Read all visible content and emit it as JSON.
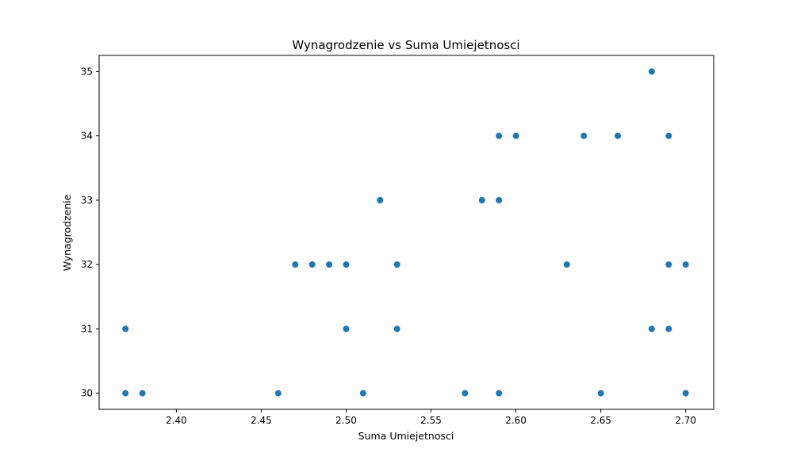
{
  "chart_data": {
    "type": "scatter",
    "title": "Wynagrodzenie vs Suma Umiejetnosci",
    "xlabel": "Suma Umiejetnosci",
    "ylabel": "Wynagrodzenie",
    "xlim": [
      2.3545,
      2.7165
    ],
    "ylim": [
      29.75,
      35.25
    ],
    "xticks": [
      2.4,
      2.45,
      2.5,
      2.55,
      2.6,
      2.65,
      2.7
    ],
    "xtick_labels": [
      "2.40",
      "2.45",
      "2.50",
      "2.55",
      "2.60",
      "2.65",
      "2.70"
    ],
    "yticks": [
      30,
      31,
      32,
      33,
      34,
      35
    ],
    "ytick_labels": [
      "30",
      "31",
      "32",
      "33",
      "34",
      "35"
    ],
    "grid": false,
    "color": "#1f77b4",
    "points": [
      {
        "x": 2.37,
        "y": 31
      },
      {
        "x": 2.37,
        "y": 30
      },
      {
        "x": 2.38,
        "y": 30
      },
      {
        "x": 2.46,
        "y": 30
      },
      {
        "x": 2.47,
        "y": 32
      },
      {
        "x": 2.48,
        "y": 32
      },
      {
        "x": 2.49,
        "y": 32
      },
      {
        "x": 2.5,
        "y": 32
      },
      {
        "x": 2.5,
        "y": 31
      },
      {
        "x": 2.51,
        "y": 30
      },
      {
        "x": 2.52,
        "y": 33
      },
      {
        "x": 2.53,
        "y": 32
      },
      {
        "x": 2.53,
        "y": 31
      },
      {
        "x": 2.57,
        "y": 30
      },
      {
        "x": 2.58,
        "y": 33
      },
      {
        "x": 2.59,
        "y": 34
      },
      {
        "x": 2.59,
        "y": 33
      },
      {
        "x": 2.59,
        "y": 30
      },
      {
        "x": 2.6,
        "y": 34
      },
      {
        "x": 2.63,
        "y": 32
      },
      {
        "x": 2.64,
        "y": 34
      },
      {
        "x": 2.65,
        "y": 30
      },
      {
        "x": 2.66,
        "y": 34
      },
      {
        "x": 2.68,
        "y": 35
      },
      {
        "x": 2.68,
        "y": 31
      },
      {
        "x": 2.69,
        "y": 34
      },
      {
        "x": 2.69,
        "y": 32
      },
      {
        "x": 2.69,
        "y": 31
      },
      {
        "x": 2.7,
        "y": 32
      },
      {
        "x": 2.7,
        "y": 30
      }
    ]
  }
}
